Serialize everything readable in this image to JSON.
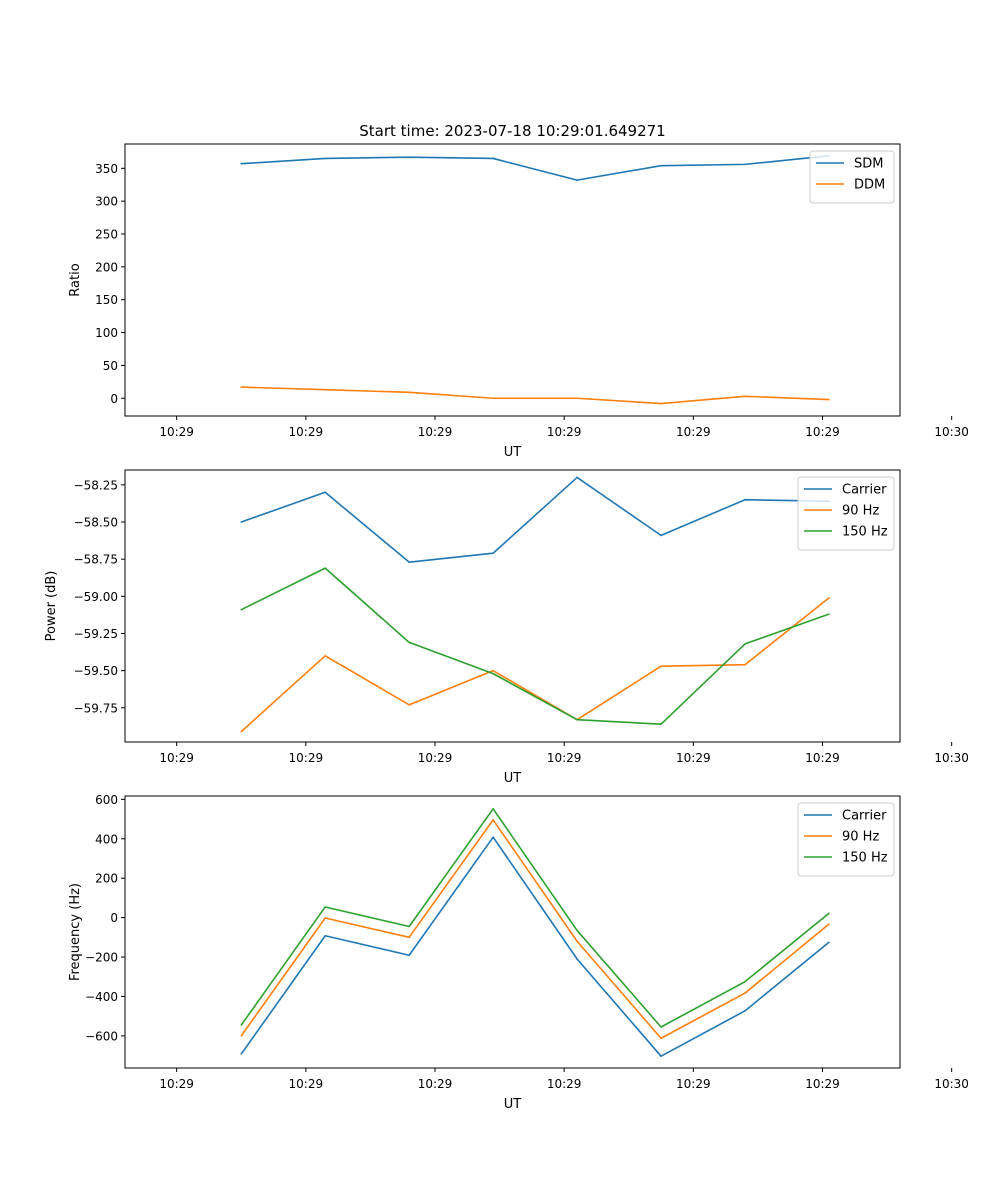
{
  "figure": {
    "title": "Start time: 2023-07-18 10:29:01.649271"
  },
  "chart_data": [
    {
      "type": "line",
      "title": "Start time: 2023-07-18 10:29:01.649271",
      "xlabel": "UT",
      "ylabel": "Ratio",
      "xlim": [
        -0.4,
        5.6
      ],
      "ylim": [
        -27,
        387
      ],
      "xticks": [
        0,
        1,
        2,
        3,
        4,
        5,
        6
      ],
      "xticklabels": [
        "10:29",
        "10:29",
        "10:29",
        "10:29",
        "10:29",
        "10:29",
        "10:30"
      ],
      "yticks": [
        0,
        50,
        100,
        150,
        200,
        250,
        300,
        350
      ],
      "yticklabels": [
        "0",
        "50",
        "100",
        "150",
        "200",
        "250",
        "300",
        "350"
      ],
      "legend": "top-right",
      "x": [
        0.5,
        1.15,
        1.8,
        2.45,
        3.1,
        3.75,
        4.4,
        5.05
      ],
      "series": [
        {
          "name": "SDM",
          "color": "#1f77b4",
          "values": [
            357,
            365,
            367,
            365,
            332,
            354,
            356,
            369
          ]
        },
        {
          "name": "DDM",
          "color": "#ff7f0e",
          "values": [
            17,
            13,
            9,
            0,
            0,
            -8,
            3,
            -2
          ]
        }
      ]
    },
    {
      "type": "line",
      "title": "",
      "xlabel": "UT",
      "ylabel": "Power (dB)",
      "xlim": [
        -0.4,
        5.6
      ],
      "ylim": [
        -59.98,
        -58.15
      ],
      "xticks": [
        0,
        1,
        2,
        3,
        4,
        5,
        6
      ],
      "xticklabels": [
        "10:29",
        "10:29",
        "10:29",
        "10:29",
        "10:29",
        "10:29",
        "10:30"
      ],
      "yticks": [
        -59.75,
        -59.5,
        -59.25,
        -59.0,
        -58.75,
        -58.5,
        -58.25
      ],
      "yticklabels": [
        "−59.75",
        "−59.50",
        "−59.25",
        "−59.00",
        "−58.75",
        "−58.50",
        "−58.25"
      ],
      "legend": "top-right",
      "x": [
        0.5,
        1.15,
        1.8,
        2.45,
        3.1,
        3.75,
        4.4,
        5.05
      ],
      "series": [
        {
          "name": "Carrier",
          "color": "#1f77b4",
          "values": [
            -58.5,
            -58.3,
            -58.77,
            -58.71,
            -58.2,
            -58.59,
            -58.35,
            -58.36
          ]
        },
        {
          "name": "90 Hz",
          "color": "#ff7f0e",
          "values": [
            -59.91,
            -59.4,
            -59.73,
            -59.5,
            -59.83,
            -59.47,
            -59.46,
            -59.01
          ]
        },
        {
          "name": "150 Hz",
          "color": "#2ca02c",
          "values": [
            -59.09,
            -58.81,
            -59.31,
            -59.52,
            -59.83,
            -59.86,
            -59.32,
            -59.12
          ]
        }
      ]
    },
    {
      "type": "line",
      "title": "",
      "xlabel": "UT",
      "ylabel": "Frequency (Hz)",
      "xlim": [
        -0.4,
        5.6
      ],
      "ylim": [
        -763,
        617
      ],
      "xticks": [
        0,
        1,
        2,
        3,
        4,
        5,
        6
      ],
      "xticklabels": [
        "10:29",
        "10:29",
        "10:29",
        "10:29",
        "10:29",
        "10:29",
        "10:30"
      ],
      "yticks": [
        -600,
        -400,
        -200,
        0,
        200,
        400,
        600
      ],
      "yticklabels": [
        "−600",
        "−400",
        "−200",
        "0",
        "200",
        "400",
        "600"
      ],
      "legend": "top-right",
      "x": [
        0.5,
        1.15,
        1.8,
        2.45,
        3.1,
        3.75,
        4.4,
        5.05
      ],
      "series": [
        {
          "name": "Carrier",
          "color": "#1f77b4",
          "values": [
            -692,
            -92,
            -191,
            408,
            -210,
            -703,
            -473,
            -125
          ]
        },
        {
          "name": "90 Hz",
          "color": "#ff7f0e",
          "values": [
            -600,
            -2,
            -100,
            496,
            -120,
            -612,
            -383,
            -33
          ]
        },
        {
          "name": "150 Hz",
          "color": "#2ca02c",
          "values": [
            -545,
            54,
            -45,
            552,
            -65,
            -555,
            -325,
            22
          ]
        }
      ]
    }
  ]
}
